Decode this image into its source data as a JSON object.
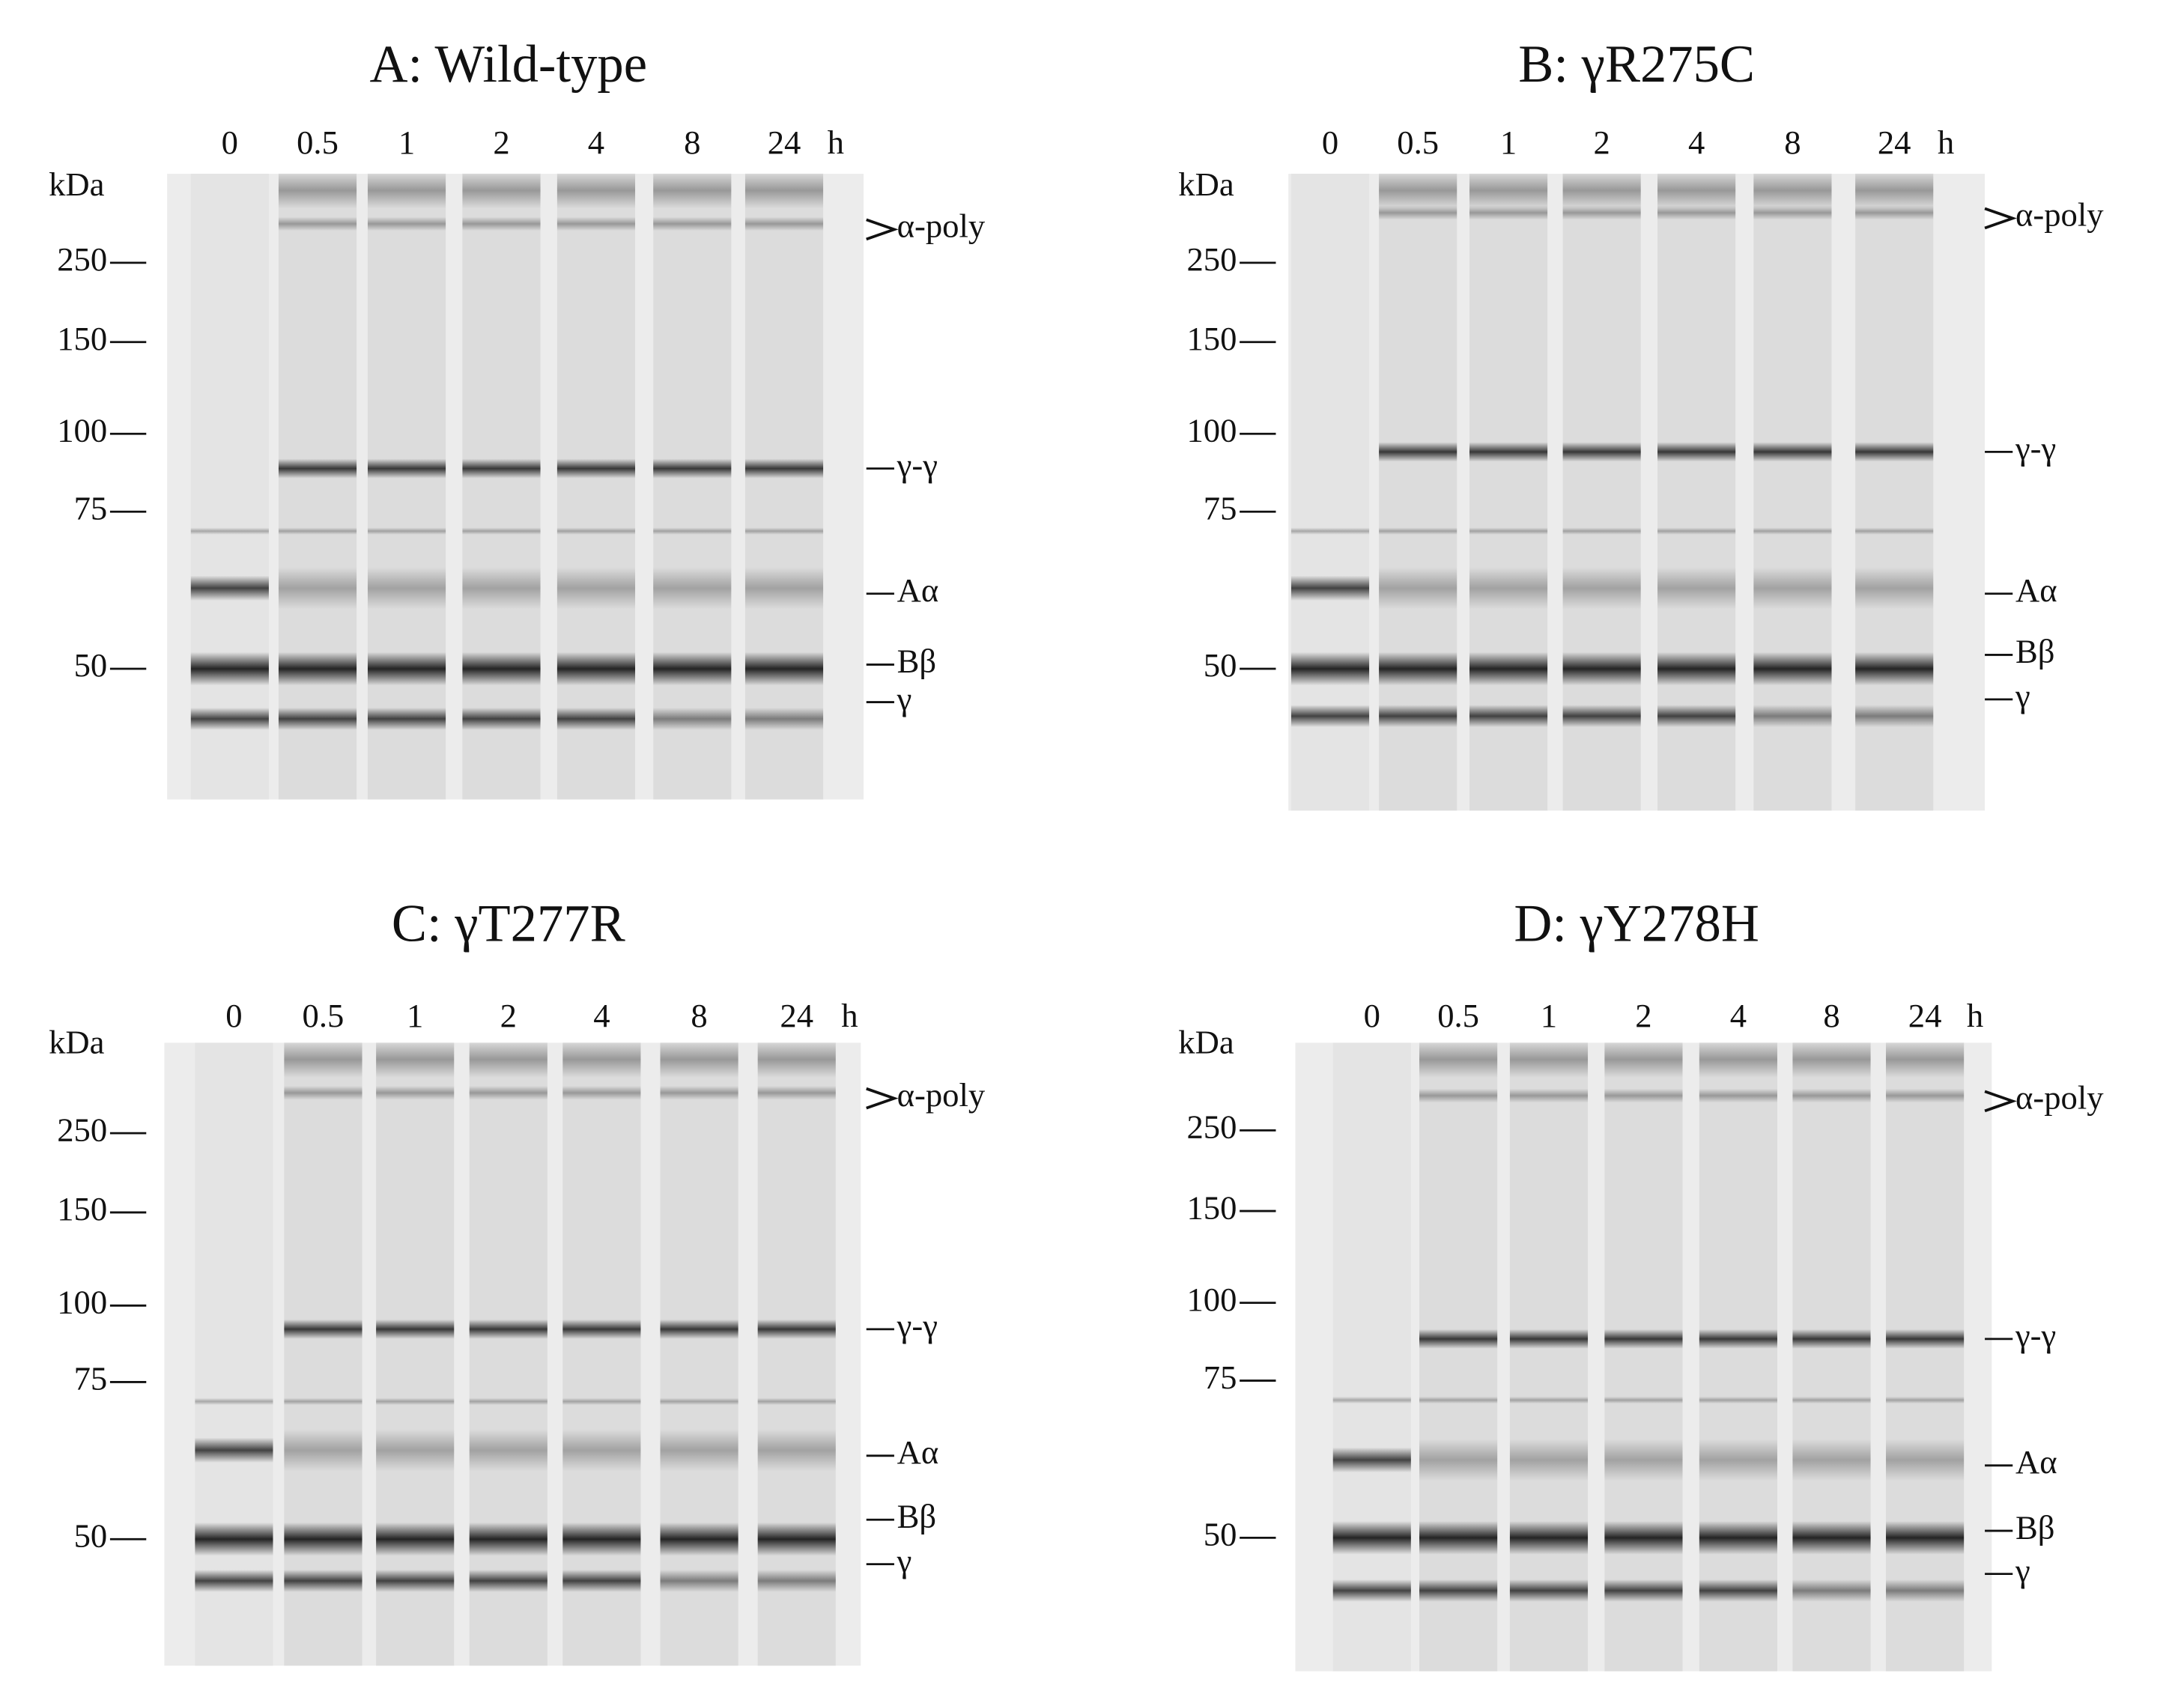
{
  "panels": [
    {
      "title": "A: Wild-type",
      "axis_label": "kDa",
      "lanes": [
        "0",
        "0.5",
        "1",
        "2",
        "4",
        "8",
        "24"
      ],
      "unit": "h",
      "markers": [
        "250",
        "150",
        "100",
        "75",
        "50"
      ],
      "bands": [
        "α-poly",
        "γ-γ",
        "Aα",
        "Bβ",
        "γ"
      ]
    },
    {
      "title": "B: γR275C",
      "axis_label": "kDa",
      "lanes": [
        "0",
        "0.5",
        "1",
        "2",
        "4",
        "8",
        "24"
      ],
      "unit": "h",
      "markers": [
        "250",
        "150",
        "100",
        "75",
        "50"
      ],
      "bands": [
        "α-poly",
        "γ-γ",
        "Aα",
        "Bβ",
        "γ"
      ]
    },
    {
      "title": "C: γT277R",
      "axis_label": "kDa",
      "lanes": [
        "0",
        "0.5",
        "1",
        "2",
        "4",
        "8",
        "24"
      ],
      "unit": "h",
      "markers": [
        "250",
        "150",
        "100",
        "75",
        "50"
      ],
      "bands": [
        "α-poly",
        "γ-γ",
        "Aα",
        "Bβ",
        "γ"
      ]
    },
    {
      "title": "D: γY278H",
      "axis_label": "kDa",
      "lanes": [
        "0",
        "0.5",
        "1",
        "2",
        "4",
        "8",
        "24"
      ],
      "unit": "h",
      "markers": [
        "250",
        "150",
        "100",
        "75",
        "50"
      ],
      "bands": [
        "α-poly",
        "γ-γ",
        "Aα",
        "Bβ",
        "γ"
      ]
    }
  ]
}
